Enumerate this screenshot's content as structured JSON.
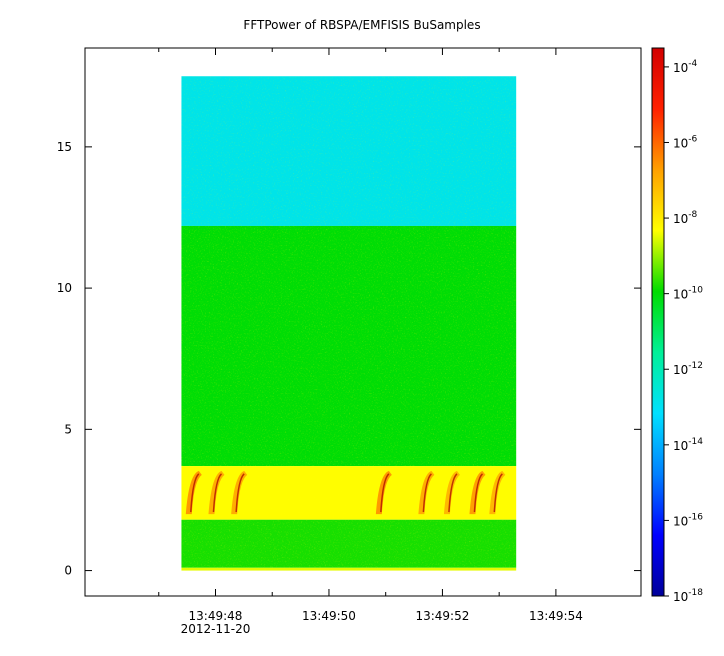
{
  "chart_data": {
    "type": "heatmap",
    "title": "FFTPower of RBSPA/EMFISIS  BuSamples",
    "x_axis": {
      "ticks": [
        {
          "label": "13:49:48",
          "value": 48
        },
        {
          "label": "13:49:50",
          "value": 50
        },
        {
          "label": "13:49:52",
          "value": 52
        },
        {
          "label": "13:49:54",
          "value": 54
        }
      ],
      "minor_ticks": [
        47,
        49,
        51,
        53
      ],
      "date_label": "2012-11-20",
      "range_seconds": [
        45.7,
        55.5
      ],
      "data_extent_seconds": [
        47.4,
        53.3
      ]
    },
    "y_axis": {
      "ticks": [
        {
          "label": "0",
          "value": 0
        },
        {
          "label": "5",
          "value": 5
        },
        {
          "label": "10",
          "value": 10
        },
        {
          "label": "15",
          "value": 15
        }
      ],
      "range": [
        -0.9,
        18.5
      ],
      "data_extent": [
        0,
        17.5
      ]
    },
    "colorbar": {
      "scale": "log",
      "range_exponent": [
        -18,
        -3.5
      ],
      "ticks": [
        {
          "base": "10",
          "exp": "-4",
          "value": -4
        },
        {
          "base": "10",
          "exp": "-6",
          "value": -6
        },
        {
          "base": "10",
          "exp": "-8",
          "value": -8
        },
        {
          "base": "10",
          "exp": "-10",
          "value": -10
        },
        {
          "base": "10",
          "exp": "-12",
          "value": -12
        },
        {
          "base": "10",
          "exp": "-14",
          "value": -14
        },
        {
          "base": "10",
          "exp": "-16",
          "value": -16
        },
        {
          "base": "10",
          "exp": "-18",
          "value": -18
        }
      ],
      "colormap": [
        "#00009a",
        "#0000ff",
        "#0080ff",
        "#00e0ff",
        "#00f098",
        "#00dc00",
        "#ffff00",
        "#ffa000",
        "#ff2000",
        "#d20000"
      ]
    },
    "regions": [
      {
        "y_from": 12.2,
        "y_to": 17.5,
        "power_exp": -12.8
      },
      {
        "y_from": 3.7,
        "y_to": 12.2,
        "power_exp": -10.0
      },
      {
        "y_from": 1.8,
        "y_to": 3.7,
        "power_exp": -8.3
      },
      {
        "y_from": 0.1,
        "y_to": 1.8,
        "power_exp": -9.8
      },
      {
        "y_from": 0.0,
        "y_to": 0.1,
        "power_exp": -8.5
      }
    ],
    "bursts": [
      {
        "t": 47.6,
        "power_exp": -6.5
      },
      {
        "t": 48.0,
        "power_exp": -6.8
      },
      {
        "t": 48.4,
        "power_exp": -6.8
      },
      {
        "t": 50.95,
        "power_exp": -6.5
      },
      {
        "t": 51.7,
        "power_exp": -6.8
      },
      {
        "t": 52.15,
        "power_exp": -7.0
      },
      {
        "t": 52.6,
        "power_exp": -6.6
      },
      {
        "t": 52.95,
        "power_exp": -7.0
      }
    ]
  }
}
